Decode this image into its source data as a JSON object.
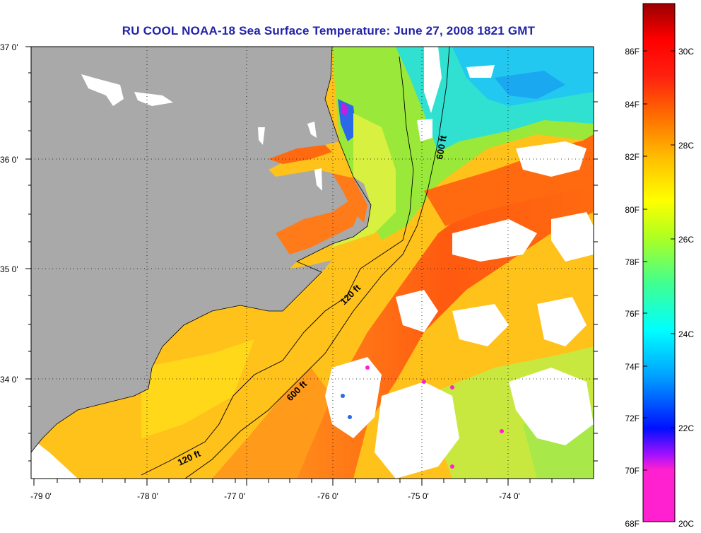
{
  "title": "RU COOL  NOAA-18  Sea Surface Temperature:  June 27, 2008 1821 GMT",
  "map": {
    "lat_labels": [
      "37 0'",
      "36 0'",
      "35 0'",
      "34 0'"
    ],
    "lon_labels": [
      "-79 0'",
      "-78 0'",
      "-77 0'",
      "-76 0'",
      "-75 0'",
      "-74 0'"
    ],
    "lat_range": [
      33.25,
      37.0
    ],
    "lon_range": [
      -79.3,
      -73.2
    ],
    "contour_labels": [
      "600 ft",
      "120 ft",
      "600 ft",
      "120 ft"
    ]
  },
  "colorbar": {
    "fahrenheit_labels": [
      "86F",
      "84F",
      "82F",
      "80F",
      "78F",
      "76F",
      "74F",
      "72F",
      "70F",
      "68F"
    ],
    "celsius_labels": [
      "30C",
      "28C",
      "26C",
      "24C",
      "22C",
      "20C"
    ],
    "range_c": [
      20,
      31
    ],
    "colors": [
      "#ff20d0",
      "#a010ff",
      "#0010ff",
      "#00a0ff",
      "#00ffff",
      "#40ff90",
      "#b0ff20",
      "#ffff00",
      "#ffc000",
      "#ff7000",
      "#ff2010",
      "#ff0000",
      "#9a0000"
    ]
  }
}
